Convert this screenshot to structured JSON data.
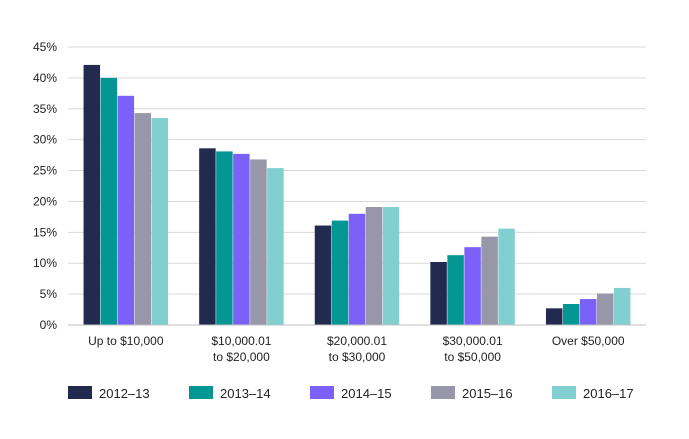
{
  "chart_data": {
    "type": "bar",
    "title": "",
    "xlabel": "",
    "ylabel": "",
    "ylim": [
      0,
      45
    ],
    "yticks": [
      "0%",
      "5%",
      "10%",
      "15%",
      "20%",
      "25%",
      "30%",
      "35%",
      "40%",
      "45%"
    ],
    "grid": true,
    "legend_position": "bottom",
    "categories": [
      [
        "Up to $10,000"
      ],
      [
        "$10,000.01",
        "to $20,000"
      ],
      [
        "$20,000.01",
        "to $30,000"
      ],
      [
        "$30,000.01",
        "to $50,000"
      ],
      [
        "Over $50,000"
      ]
    ],
    "series": [
      {
        "name": "2012–13",
        "color": "#232a4f",
        "values": [
          42.1,
          28.6,
          16.1,
          10.2,
          2.7
        ]
      },
      {
        "name": "2013–14",
        "color": "#049693",
        "values": [
          40.0,
          28.1,
          16.9,
          11.3,
          3.4
        ]
      },
      {
        "name": "2014–15",
        "color": "#7b61f7",
        "values": [
          37.1,
          27.7,
          18.0,
          12.6,
          4.2
        ]
      },
      {
        "name": "2015–16",
        "color": "#9897a9",
        "values": [
          34.3,
          26.8,
          19.1,
          14.3,
          5.1
        ]
      },
      {
        "name": "2016–17",
        "color": "#82cfcf",
        "values": [
          33.5,
          25.4,
          19.1,
          15.6,
          6.0
        ]
      }
    ]
  }
}
